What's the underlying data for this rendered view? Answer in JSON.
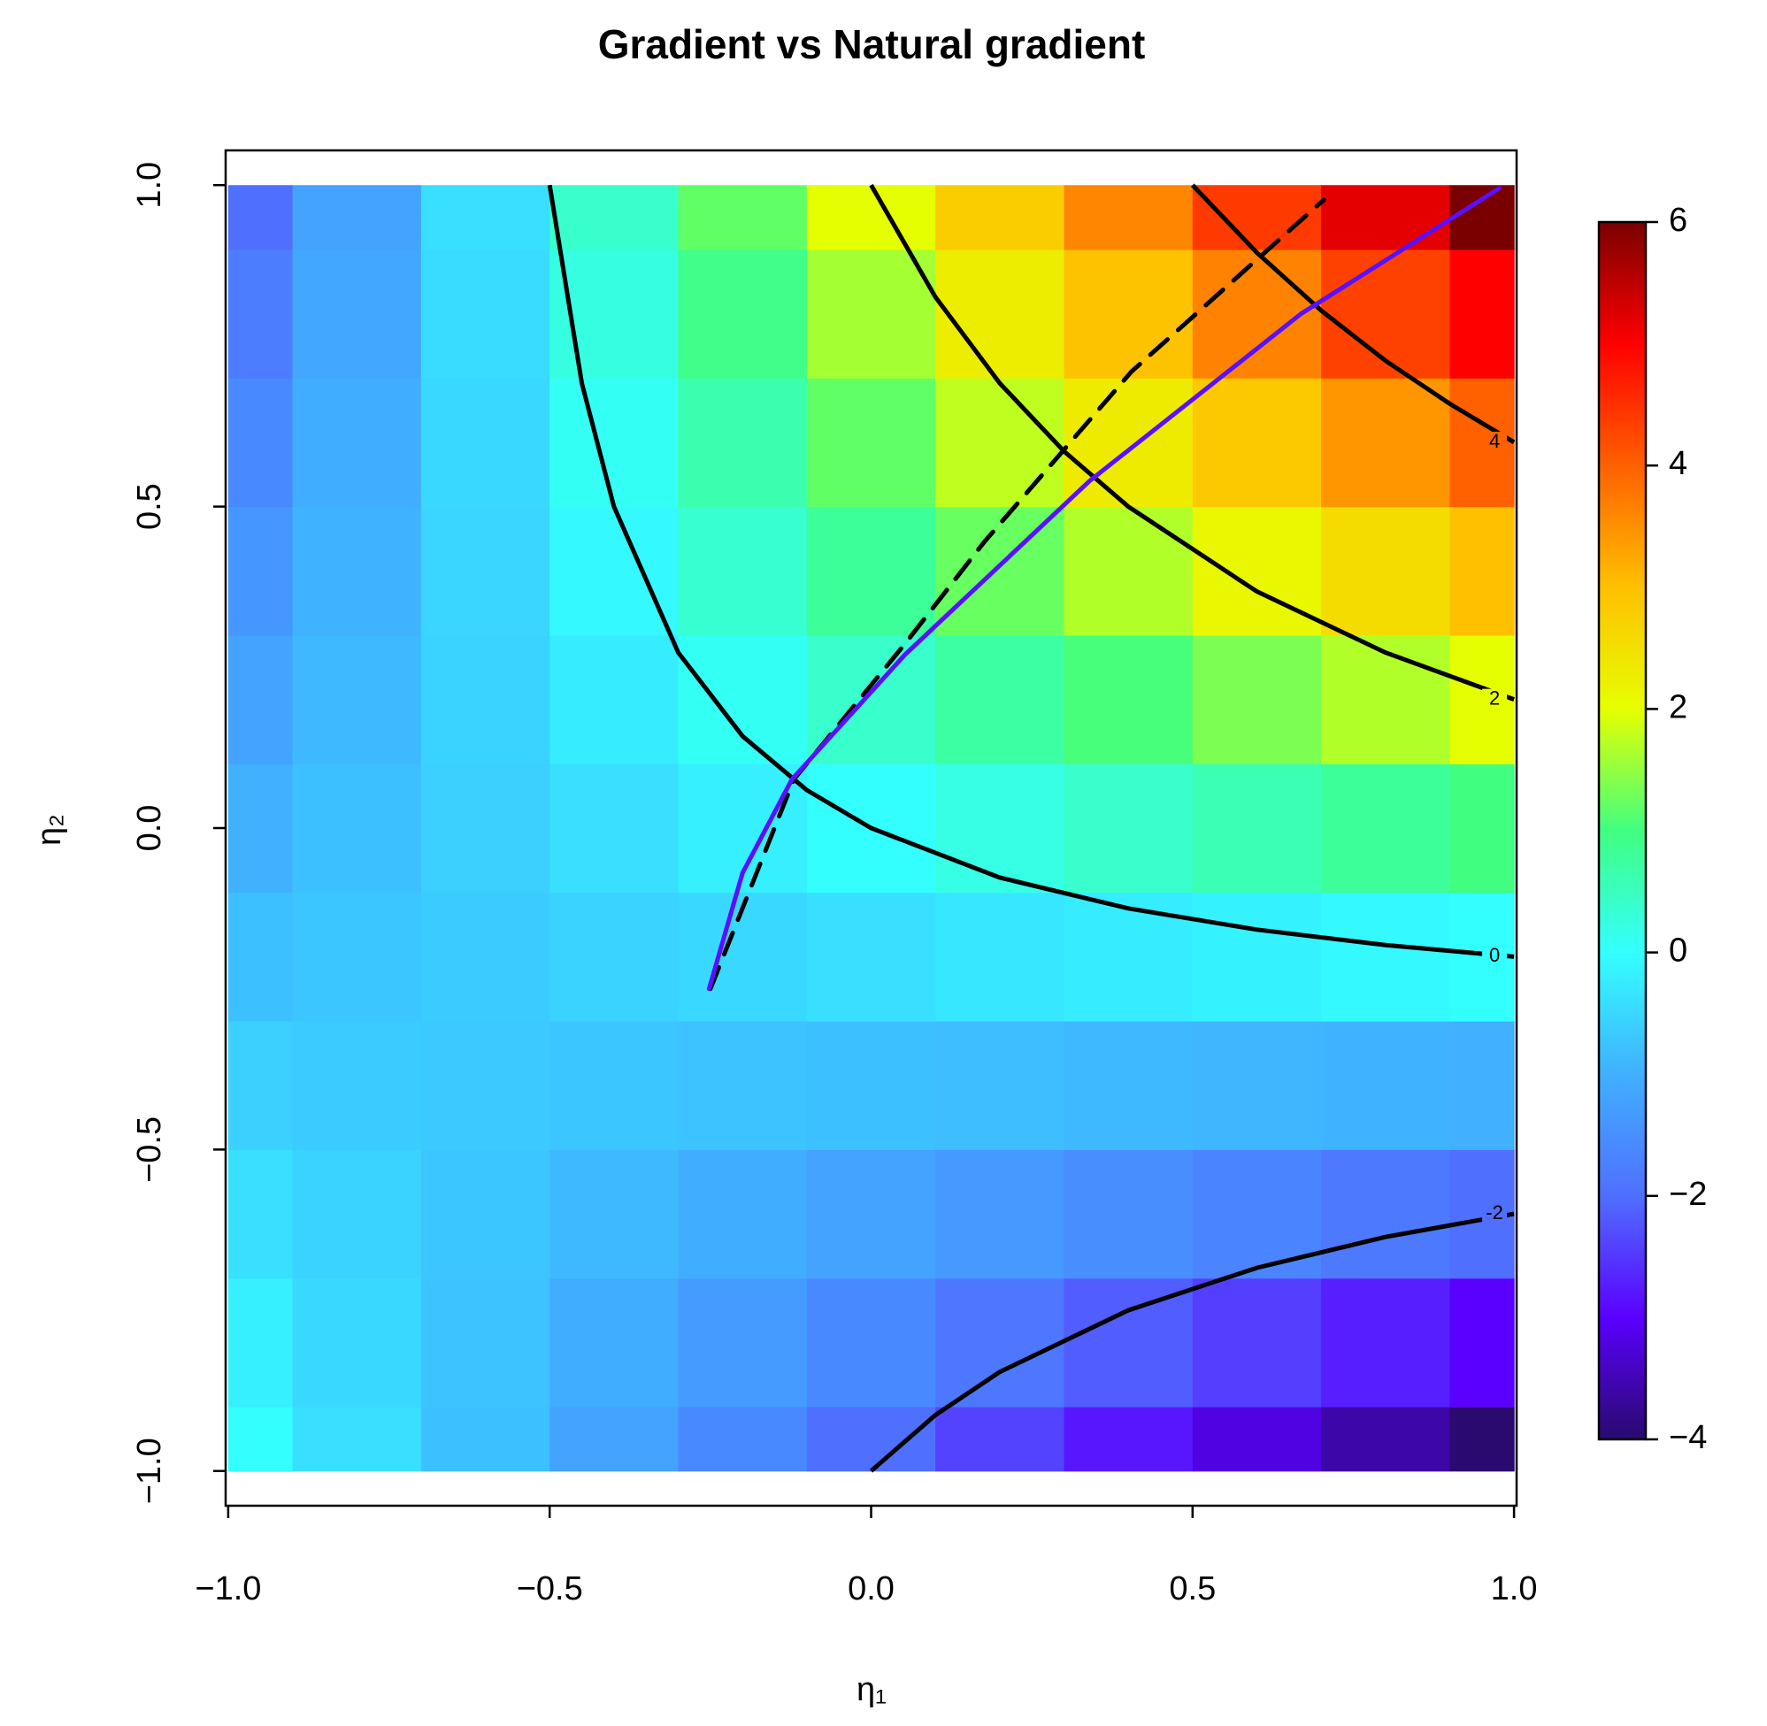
{
  "chart_data": {
    "type": "heatmap",
    "title": "Gradient vs Natural gradient",
    "xlabel": "η₁",
    "ylabel": "η₂",
    "xlim": [
      -1.004,
      1.004
    ],
    "ylim": [
      -1.054,
      1.054
    ],
    "xticks": [
      {
        "value": -1,
        "label": "−1.0"
      },
      {
        "value": -0.5,
        "label": "−0.5"
      },
      {
        "value": 0,
        "label": "0.0"
      },
      0.5,
      {
        "value": 1,
        "label": "1.0"
      }
    ],
    "yticks": [
      {
        "value": -1,
        "label": "−1.0"
      },
      {
        "value": -0.5,
        "label": "−0.5"
      },
      {
        "value": 0,
        "label": "0.0"
      },
      0.5,
      {
        "value": 1,
        "label": "1.0"
      }
    ],
    "grid_x": [
      -1,
      -0.8,
      -0.6,
      -0.4,
      -0.2,
      0,
      0.2,
      0.4,
      0.6,
      0.8,
      1
    ],
    "grid_y": [
      -1,
      -0.8,
      -0.6,
      -0.4,
      -0.2,
      0,
      0.2,
      0.4,
      0.6,
      0.8,
      1
    ],
    "z": [
      [
        0,
        -0.4,
        -0.8,
        -1.2,
        -1.6,
        -2,
        -2.4,
        -2.8,
        -3.2,
        -3.6,
        -4
      ],
      [
        -0.2,
        -0.48,
        -0.76,
        -1.04,
        -1.32,
        -1.6,
        -1.88,
        -2.16,
        -2.44,
        -2.72,
        -3
      ],
      [
        -0.4,
        -0.56,
        -0.72,
        -0.88,
        -1.04,
        -1.2,
        -1.36,
        -1.52,
        -1.68,
        -1.84,
        -2
      ],
      [
        -0.6,
        -0.64,
        -0.68,
        -0.72,
        -0.76,
        -0.8,
        -0.84,
        -0.88,
        -0.92,
        -0.96,
        -1
      ],
      [
        -0.8,
        -0.72,
        -0.64,
        -0.56,
        -0.48,
        -0.4,
        -0.32,
        -0.24,
        -0.16,
        -0.08,
        0
      ],
      [
        -1,
        -0.8,
        -0.6,
        -0.4,
        -0.2,
        0,
        0.2,
        0.4,
        0.6,
        0.8,
        1
      ],
      [
        -1.2,
        -0.88,
        -0.56,
        -0.24,
        0.08,
        0.4,
        0.72,
        1.04,
        1.36,
        1.68,
        2
      ],
      [
        -1.4,
        -0.96,
        -0.52,
        -0.08,
        0.36,
        0.8,
        1.24,
        1.68,
        2.12,
        2.56,
        3
      ],
      [
        -1.6,
        -1.04,
        -0.48,
        0.08,
        0.64,
        1.2,
        1.76,
        2.32,
        2.88,
        3.44,
        4
      ],
      [
        -1.8,
        -1.12,
        -0.44,
        0.24,
        0.92,
        1.6,
        2.28,
        2.96,
        3.64,
        4.32,
        5
      ],
      [
        -2,
        -1.2,
        -0.4,
        0.4,
        1.2,
        2,
        2.8,
        3.6,
        4.4,
        5.2,
        6
      ]
    ],
    "zlim": [
      -4,
      6
    ],
    "zticks": [
      {
        "value": -4,
        "label": "−4"
      },
      {
        "value": -2,
        "label": "−2"
      },
      0,
      2,
      4,
      6
    ],
    "colormap": [
      "#2a0a6e",
      "#5a00ff",
      "#4f6fff",
      "#40b0ff",
      "#33ffff",
      "#40ff80",
      "#e6ff00",
      "#ffc000",
      "#ff6000",
      "#ff0000",
      "#7a0000"
    ],
    "contours": [
      {
        "level": 4,
        "x": [
          0.5,
          0.6,
          0.7,
          0.8,
          0.9,
          1
        ],
        "y": [
          1,
          0.895,
          0.805,
          0.727,
          0.66,
          0.6
        ]
      },
      {
        "level": 2,
        "x": [
          0,
          0.1,
          0.2,
          0.3,
          0.4,
          0.6,
          0.8,
          1
        ],
        "y": [
          1,
          0.826,
          0.692,
          0.586,
          0.5,
          0.368,
          0.273,
          0.2
        ]
      },
      {
        "level": 0,
        "x": [
          -0.5,
          -0.45,
          -0.4,
          -0.3,
          -0.2,
          -0.1,
          0,
          0.2,
          0.4,
          0.6,
          0.8,
          1
        ],
        "y": [
          1,
          0.692,
          0.5,
          0.273,
          0.143,
          0.059,
          0,
          -0.077,
          -0.125,
          -0.158,
          -0.182,
          -0.2
        ]
      },
      {
        "level": -2,
        "x": [
          0,
          0.1,
          0.2,
          0.4,
          0.6,
          0.8,
          1
        ],
        "y": [
          -1,
          -0.913,
          -0.846,
          -0.75,
          -0.684,
          -0.636,
          -0.6
        ]
      }
    ],
    "paths": [
      {
        "color": "#000000",
        "dashed": true,
        "x": [
          -0.25,
          -0.12,
          0.053,
          0.176,
          0.405,
          0.704
        ],
        "y": [
          -0.25,
          0.076,
          0.287,
          0.445,
          0.71,
          0.977
        ]
      },
      {
        "color": "#5a10ff",
        "dashed": false,
        "x": [
          -0.252,
          -0.2,
          -0.123,
          0.053,
          0.34,
          0.669,
          0.977
        ],
        "y": [
          -0.25,
          -0.07,
          0.076,
          0.27,
          0.54,
          0.8,
          0.995
        ]
      }
    ]
  }
}
